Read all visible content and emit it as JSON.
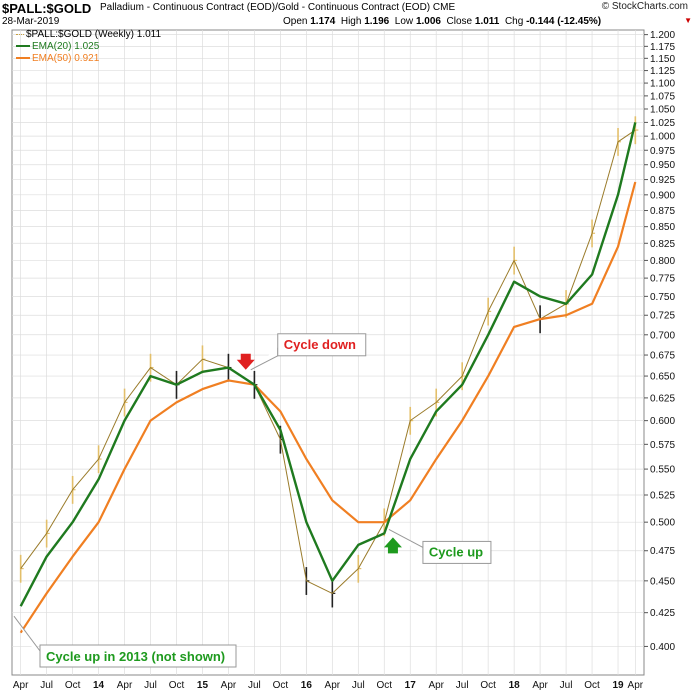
{
  "header": {
    "symbol": "$PALL:$GOLD",
    "description": "Palladium - Continuous Contract (EOD)/Gold - Continuous Contract (EOD)  CME",
    "date": "28-Mar-2019",
    "brand": "© StockCharts.com",
    "open_label": "Open",
    "open": "1.174",
    "high_label": "High",
    "high": "1.196",
    "low_label": "Low",
    "low": "1.006",
    "close_label": "Close",
    "close": "1.011",
    "chg_label": "Chg",
    "chg": "-0.144 (-12.45%)"
  },
  "legend": {
    "price": "$PALL:$GOLD (Weekly) 1.011",
    "ema20": "EMA(20) 1.025",
    "ema50": "EMA(50) 0.921"
  },
  "colors": {
    "up_bar": "#e3bf6a",
    "down_bar": "#222222",
    "ema20": "#1f7a1f",
    "ema50": "#f07f22",
    "grid": "#dddddd",
    "annotation_red": "#e02020",
    "annotation_green": "#1e9a1e"
  },
  "chart_data": {
    "type": "line",
    "title": "$PALL:$GOLD (Weekly)",
    "ylim": [
      0.38,
      1.21
    ],
    "y_scale": "log",
    "grid": true,
    "legend_position": "top-left",
    "y_ticks": [
      "1.200",
      "1.175",
      "1.150",
      "1.125",
      "1.100",
      "1.075",
      "1.050",
      "1.025",
      "1.000",
      "0.975",
      "0.950",
      "0.925",
      "0.900",
      "0.875",
      "0.850",
      "0.825",
      "0.800",
      "0.775",
      "0.750",
      "0.725",
      "0.700",
      "0.675",
      "0.650",
      "0.625",
      "0.600",
      "0.575",
      "0.550",
      "0.525",
      "0.500",
      "0.475",
      "0.450",
      "0.425",
      "0.400"
    ],
    "x_ticks": [
      "Apr",
      "Jul",
      "Oct",
      "14",
      "Apr",
      "Jul",
      "Oct",
      "15",
      "Apr",
      "Jul",
      "Oct",
      "16",
      "Apr",
      "Jul",
      "Oct",
      "17",
      "Apr",
      "Jul",
      "Oct",
      "18",
      "Apr",
      "Jul",
      "Oct",
      "19",
      "Apr"
    ],
    "x": [
      "2013-04",
      "2013-07",
      "2013-10",
      "2014-01",
      "2014-04",
      "2014-07",
      "2014-10",
      "2015-01",
      "2015-04",
      "2015-07",
      "2015-10",
      "2016-01",
      "2016-04",
      "2016-07",
      "2016-10",
      "2017-01",
      "2017-04",
      "2017-07",
      "2017-10",
      "2018-01",
      "2018-04",
      "2018-07",
      "2018-10",
      "2019-01",
      "2019-03"
    ],
    "series": [
      {
        "name": "$PALL:$GOLD (Weekly)",
        "values": [
          0.46,
          0.49,
          0.53,
          0.56,
          0.62,
          0.66,
          0.64,
          0.67,
          0.66,
          0.64,
          0.58,
          0.45,
          0.44,
          0.46,
          0.5,
          0.6,
          0.62,
          0.65,
          0.73,
          0.8,
          0.72,
          0.74,
          0.84,
          0.99,
          1.011
        ]
      },
      {
        "name": "EMA(20)",
        "values": [
          0.43,
          0.47,
          0.5,
          0.54,
          0.6,
          0.65,
          0.64,
          0.655,
          0.66,
          0.64,
          0.59,
          0.5,
          0.45,
          0.48,
          0.49,
          0.56,
          0.61,
          0.64,
          0.7,
          0.77,
          0.75,
          0.74,
          0.78,
          0.9,
          1.025
        ]
      },
      {
        "name": "EMA(50)",
        "values": [
          0.41,
          0.44,
          0.47,
          0.5,
          0.55,
          0.6,
          0.62,
          0.635,
          0.645,
          0.64,
          0.61,
          0.56,
          0.52,
          0.5,
          0.5,
          0.52,
          0.56,
          0.6,
          0.65,
          0.71,
          0.72,
          0.725,
          0.74,
          0.82,
          0.921
        ]
      }
    ],
    "annotations": [
      {
        "text": "Cycle down",
        "x": "2015-06",
        "y": 0.655,
        "marker": "down-arrow"
      },
      {
        "text": "Cycle up",
        "x": "2016-11",
        "y": 0.49,
        "marker": "up-arrow"
      },
      {
        "text": "Cycle up in 2013 (not shown)",
        "x": "2013-03",
        "y": 0.43
      }
    ]
  }
}
